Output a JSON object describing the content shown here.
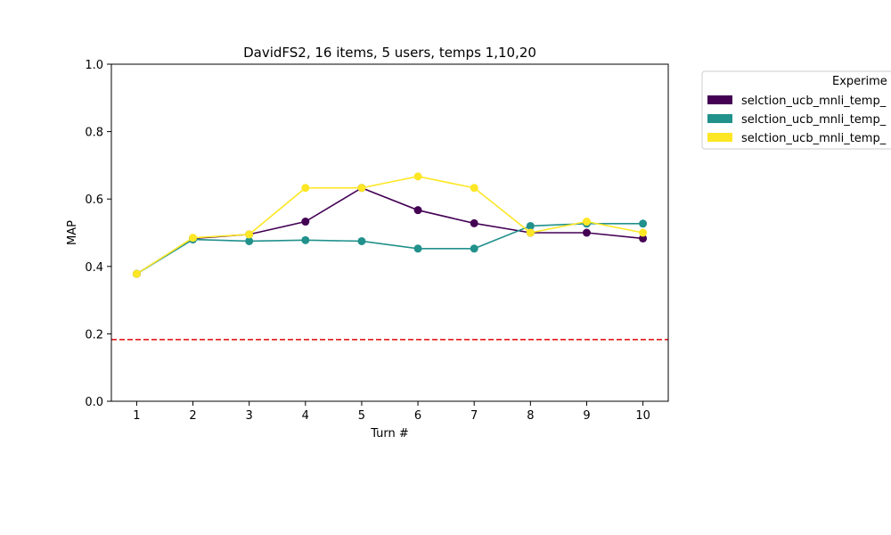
{
  "chart_data": {
    "type": "line",
    "title": "DavidFS2, 16 items, 5 users, temps 1,10,20",
    "xlabel": "Turn #",
    "ylabel": "MAP",
    "x": [
      1,
      2,
      3,
      4,
      5,
      6,
      7,
      8,
      9,
      10
    ],
    "xticks": [
      "1",
      "2",
      "3",
      "4",
      "5",
      "6",
      "7",
      "8",
      "9",
      "10"
    ],
    "xlim": [
      0.55,
      10.45
    ],
    "ylim": [
      0.0,
      1.0
    ],
    "yticks": [
      "0.0",
      "0.2",
      "0.4",
      "0.6",
      "0.8",
      "1.0"
    ],
    "grid": false,
    "baseline": {
      "y": 0.183,
      "color": "#e8191b",
      "style": "dashed"
    },
    "legend": {
      "title": "Experime",
      "placement": "outside-top-right",
      "entries": [
        "selction_ucb_mnli_temp_",
        "selction_ucb_mnli_temp_",
        "selction_ucb_mnli_temp_"
      ]
    },
    "series": [
      {
        "color": "#440154",
        "values": [
          0.378,
          0.483,
          0.495,
          0.533,
          0.633,
          0.567,
          0.528,
          0.5,
          0.5,
          0.483
        ]
      },
      {
        "color": "#21918c",
        "values": [
          0.378,
          0.48,
          0.475,
          0.478,
          0.475,
          0.453,
          0.453,
          0.52,
          0.527,
          0.527
        ]
      },
      {
        "color": "#fde725",
        "values": [
          0.378,
          0.485,
          0.495,
          0.633,
          0.633,
          0.667,
          0.633,
          0.5,
          0.533,
          0.5
        ]
      }
    ]
  }
}
